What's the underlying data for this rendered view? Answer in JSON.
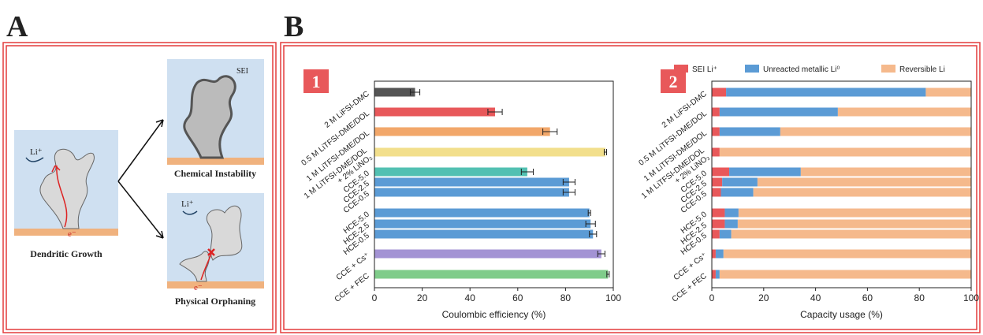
{
  "panel_labels": [
    "A",
    "B"
  ],
  "diagram": {
    "labels": [
      "Li⁺",
      "e⁻",
      "SEI",
      "Chemical Instability",
      "Dendritic Growth",
      "Li⁺",
      "e⁻",
      "Physical Orphaning"
    ]
  },
  "chart_data": [
    {
      "type": "bar",
      "badge": "1",
      "categories": [
        "2 M LiFSI-DMC",
        "0.5 M LiTFSI-DME/DOL",
        "1 M LiTFSI-DME/DOL",
        "1 M LiTFSI-DME/DOL\n+ 2% LiNO₃",
        "CCE-5.0",
        "CCE-2.5",
        "CCE-0.5",
        "HCE-5.0",
        "HCE-2.5",
        "HCE-0.5",
        "CCE + Cs⁺",
        "CCE + FEC"
      ],
      "values": [
        17,
        50.5,
        73.5,
        96.7,
        64,
        81.5,
        81.5,
        90,
        90.5,
        91.5,
        95,
        97.8
      ],
      "errors": [
        2,
        3,
        3,
        0.5,
        2.5,
        2.5,
        2.5,
        0.5,
        2,
        1.5,
        1.5,
        0.5
      ],
      "colors": [
        "#555555",
        "#e8585a",
        "#f2a76a",
        "#f2df8c",
        "#52c0b2",
        "#5b9bd5",
        "#5b9bd5",
        "#5b9bd5",
        "#5b9bd5",
        "#5b9bd5",
        "#a393d4",
        "#7fcc8a"
      ],
      "xlabel": "Coulombic efficiency (%)",
      "xlim": [
        0,
        100
      ],
      "xticks": [
        0,
        20,
        40,
        60,
        80,
        100
      ]
    },
    {
      "type": "stacked_bar",
      "badge": "2",
      "categories": [
        "2 M LiFSI-DMC",
        "0.5 M LiTFSI-DME/DOL",
        "1 M LiTFSI-DME/DOL",
        "1 M LiTFSI-DME/DOL\n+ 2% LiNO₃",
        "CCE-5.0",
        "CCE-2.5",
        "CCE-0.5",
        "HCE-5.0",
        "HCE-2.5",
        "HCE-0.5",
        "CCE + Cs⁺",
        "CCE + FEC"
      ],
      "series": [
        {
          "name": "SEI Li⁺",
          "color": "#e8585a",
          "values": [
            5.5,
            3,
            3,
            3,
            6.7,
            4,
            3.5,
            5,
            5,
            3,
            1.5,
            1.5
          ]
        },
        {
          "name": "Unreacted metallic Li⁰",
          "color": "#5b9bd5",
          "values": [
            77,
            45.6,
            23.4,
            0,
            27.6,
            13.6,
            12.5,
            5.3,
            5,
            4.5,
            3,
            1.5
          ]
        },
        {
          "name": "Reversible Li",
          "color": "#f5b98c",
          "values": [
            17.5,
            51.4,
            73.6,
            97,
            65.7,
            82.4,
            84,
            89.7,
            90,
            92.5,
            95.5,
            97
          ]
        }
      ],
      "xlabel": "Capacity usage (%)",
      "xlim": [
        0,
        100
      ],
      "xticks": [
        0,
        20,
        40,
        60,
        80,
        100
      ],
      "legend": "top"
    }
  ]
}
